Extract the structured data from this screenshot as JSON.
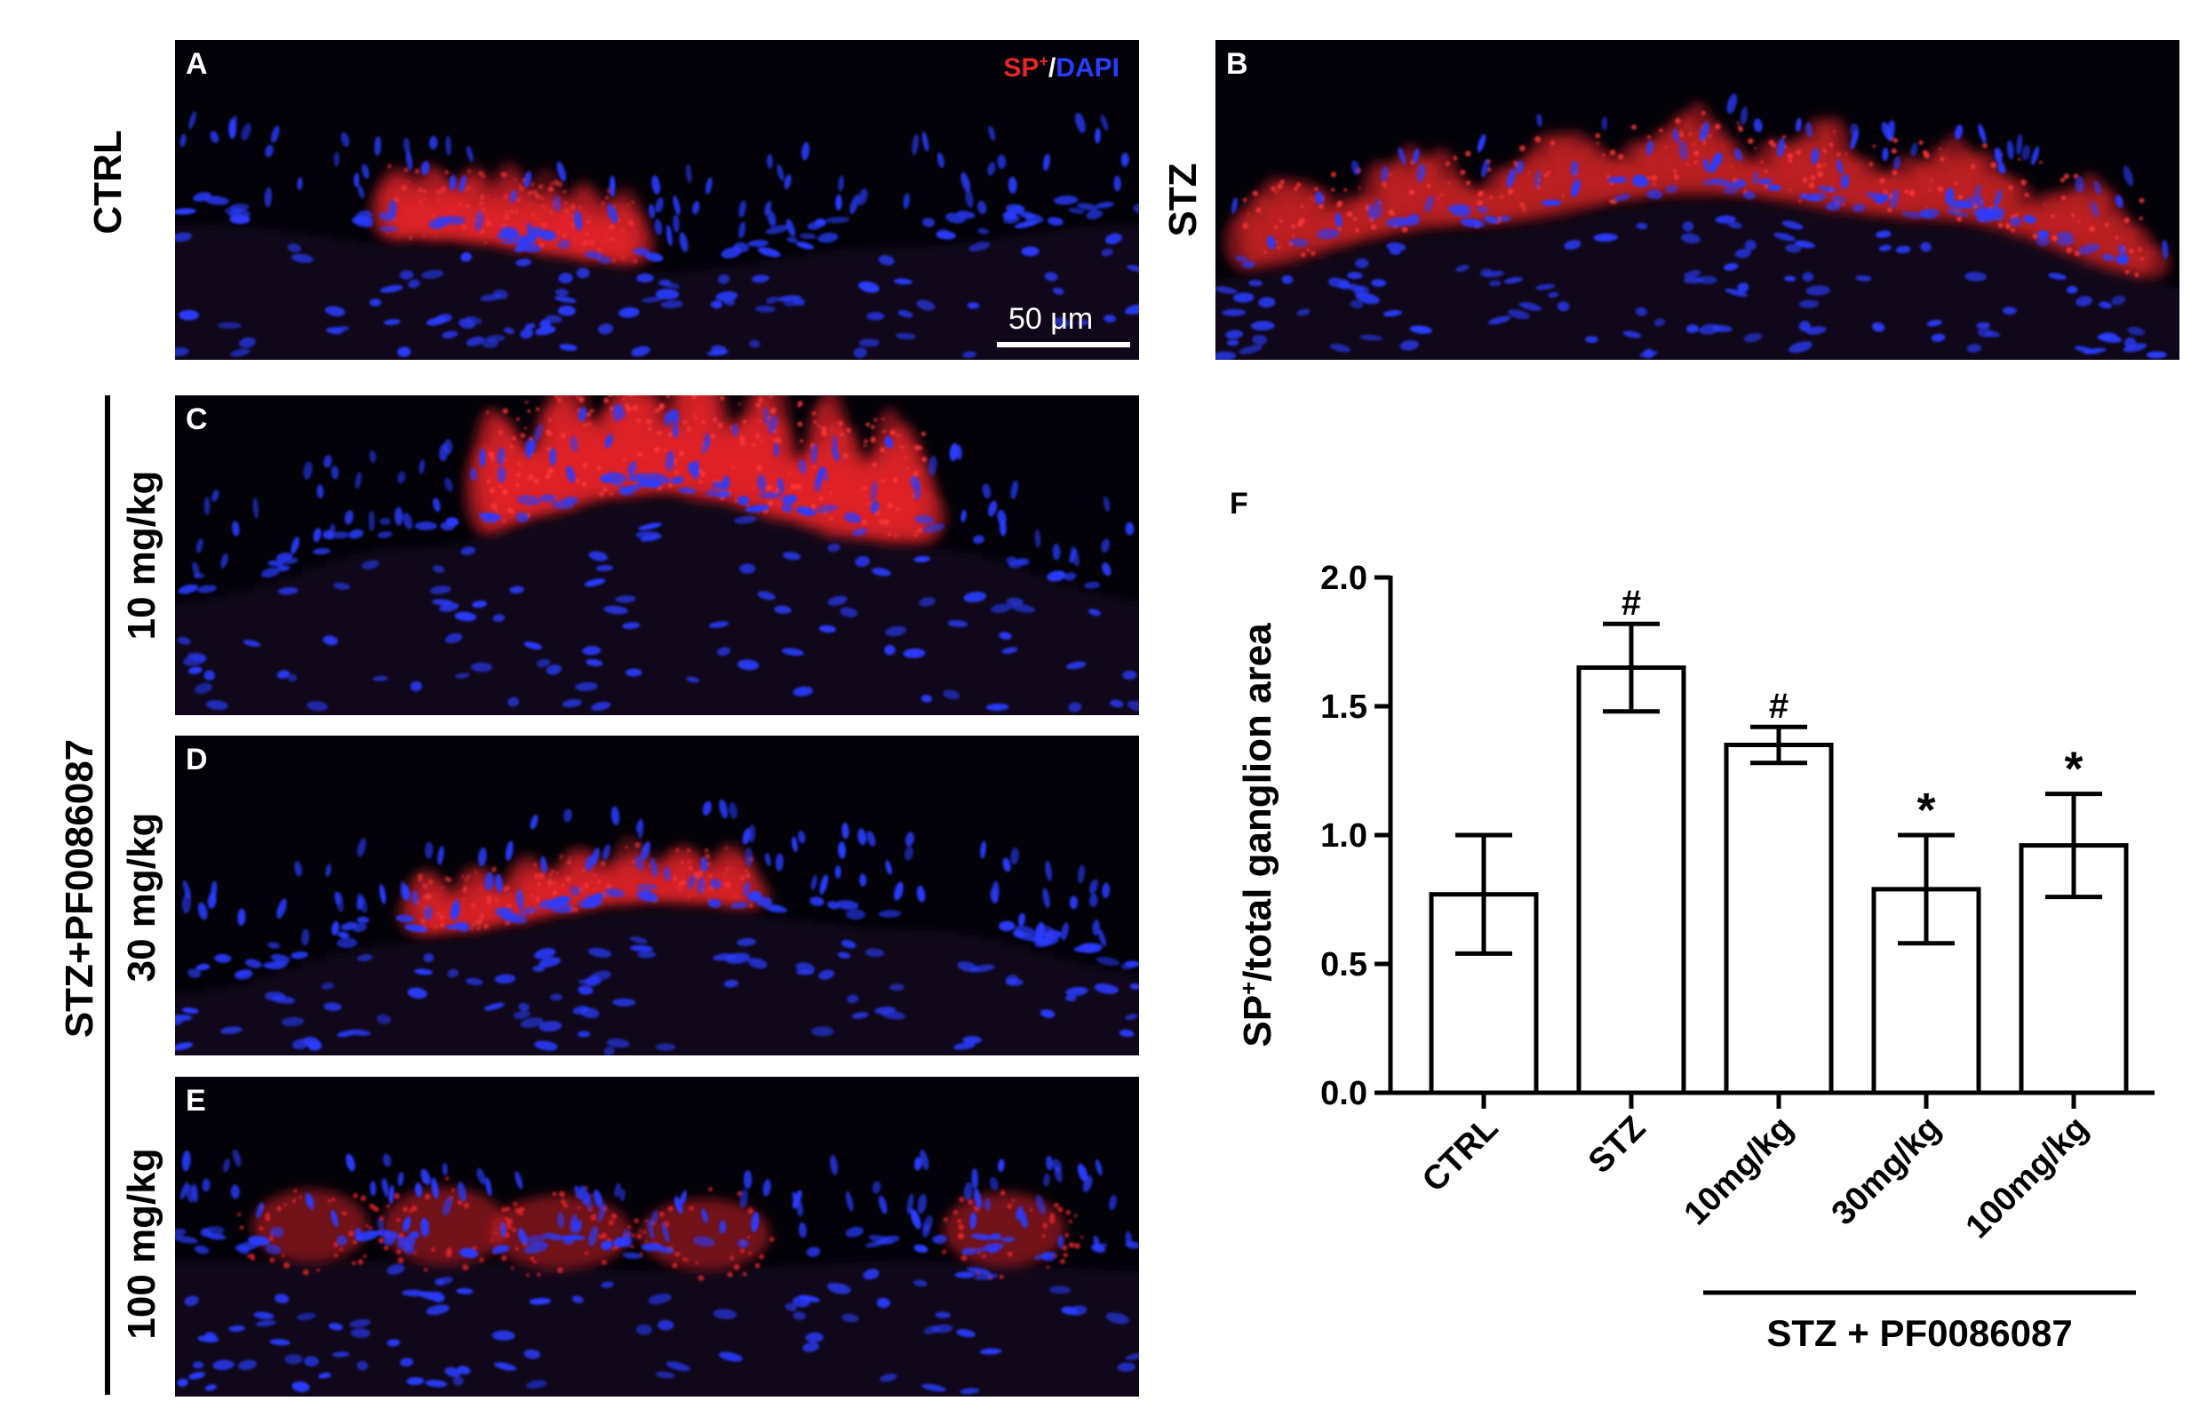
{
  "panels": {
    "A": {
      "letter": "A",
      "row_label": "CTRL",
      "legend_sp": "SP",
      "legend_sup": "+",
      "legend_sep": "/",
      "legend_dapi": "DAPI",
      "scalebar": "50 μm"
    },
    "B": {
      "letter": "B",
      "row_label": "STZ"
    },
    "C": {
      "letter": "C",
      "row_label": "10 mg/kg"
    },
    "D": {
      "letter": "D",
      "row_label": "30 mg/kg"
    },
    "E": {
      "letter": "E",
      "row_label": "100 mg/kg"
    },
    "group_label": "STZ+PF0086087",
    "F_letter": "F"
  },
  "colors": {
    "sp": "#e8262a",
    "dapi": "#2a3cff",
    "background": "#020208"
  },
  "chart_data": {
    "type": "bar",
    "ylabel_main": "SP",
    "ylabel_sup": "+",
    "ylabel_rest": "/total ganglion area",
    "ylim": [
      0,
      2.0
    ],
    "yticks": [
      "0.0",
      "0.5",
      "1.0",
      "1.5",
      "2.0"
    ],
    "categories": [
      "CTRL",
      "STZ",
      "10mg/kg",
      "30mg/kg",
      "100mg/kg"
    ],
    "values": [
      0.77,
      1.65,
      1.35,
      0.79,
      0.96
    ],
    "errors": [
      0.23,
      0.17,
      0.07,
      0.21,
      0.2
    ],
    "markers": [
      "",
      "#",
      "#",
      "*",
      "*"
    ],
    "group_label": "STZ + PF0086087",
    "group_span": [
      "10mg/kg",
      "100mg/kg"
    ]
  }
}
